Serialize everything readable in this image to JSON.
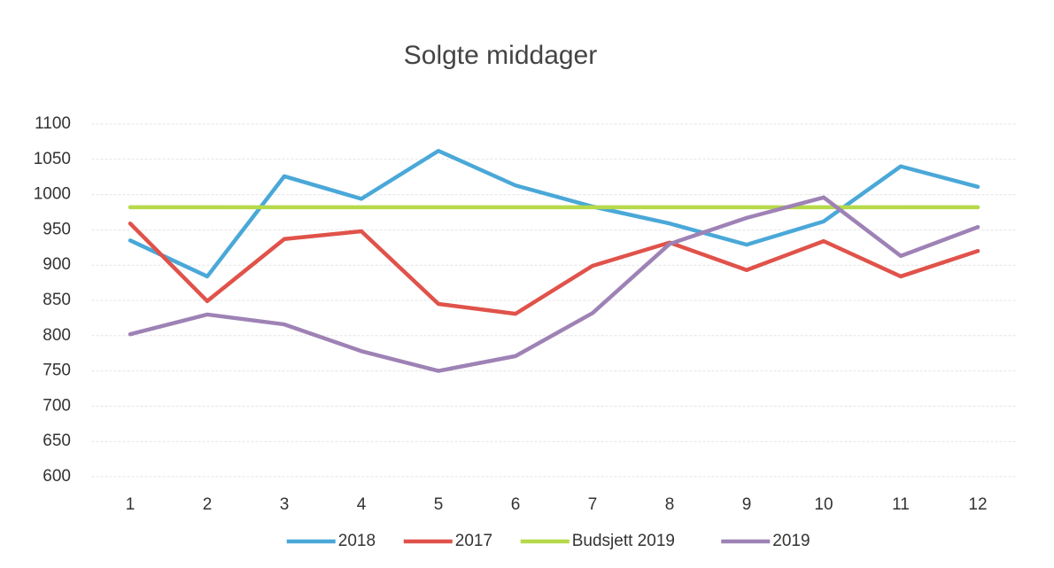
{
  "chart_data": {
    "type": "line",
    "title": "Solgte middager",
    "categories": [
      "1",
      "2",
      "3",
      "4",
      "5",
      "6",
      "7",
      "8",
      "9",
      "10",
      "11",
      "12"
    ],
    "series": [
      {
        "name": "2018",
        "color": "#4aa8d8",
        "values": [
          935,
          884,
          1026,
          994,
          1062,
          1013,
          983,
          959,
          929,
          962,
          1040,
          1011
        ]
      },
      {
        "name": "2017",
        "color": "#e0524a",
        "values": [
          959,
          849,
          937,
          948,
          845,
          831,
          899,
          932,
          893,
          934,
          884,
          920
        ]
      },
      {
        "name": "Budsjett 2019",
        "color": "#b5d94a",
        "values": [
          982,
          982,
          982,
          982,
          982,
          982,
          982,
          982,
          982,
          982,
          982,
          982
        ]
      },
      {
        "name": "2019",
        "color": "#9e82b5",
        "values": [
          802,
          830,
          816,
          778,
          750,
          771,
          832,
          930,
          967,
          996,
          913,
          954
        ]
      }
    ],
    "ylim": [
      600,
      1100
    ],
    "yticks": [
      600,
      650,
      700,
      750,
      800,
      850,
      900,
      950,
      1000,
      1050,
      1100
    ],
    "grid": true,
    "legend": "bottom"
  }
}
